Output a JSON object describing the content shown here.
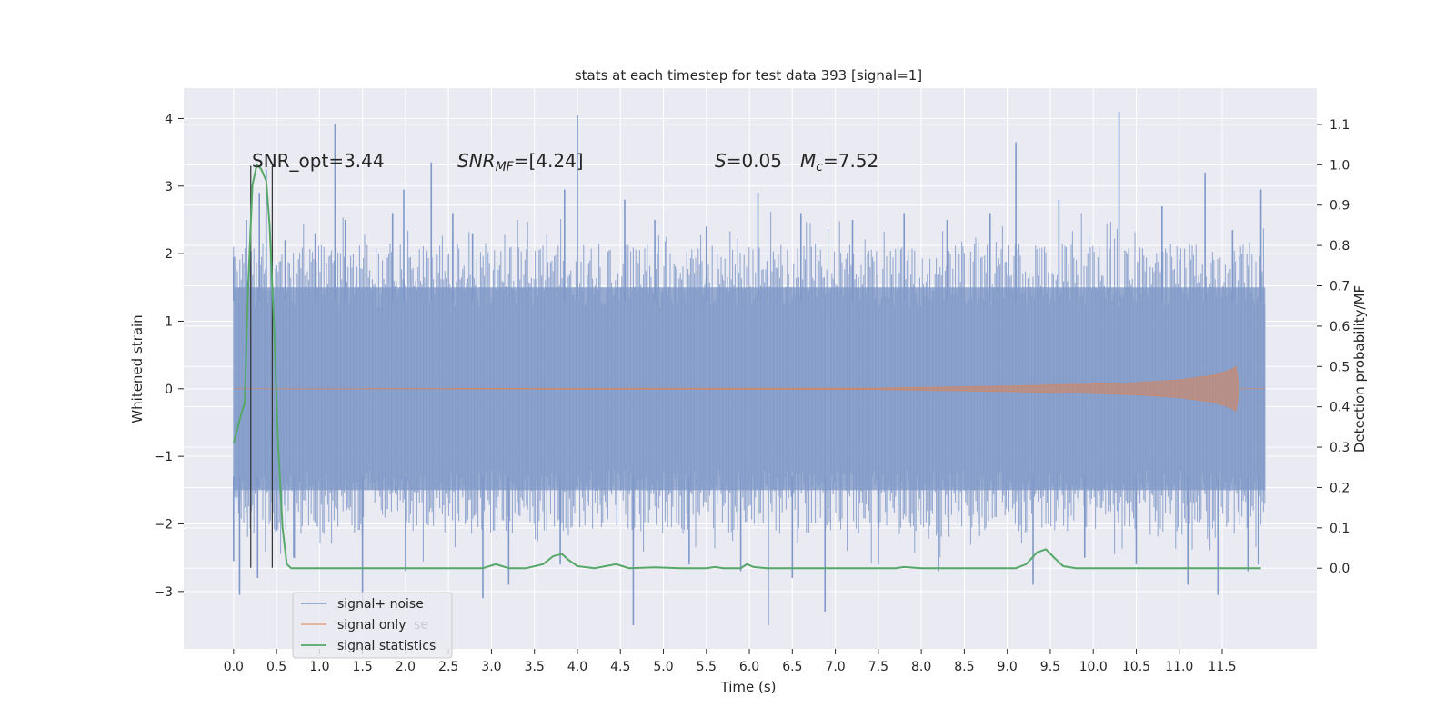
{
  "chart_data": {
    "type": "line",
    "title": "stats at each timestep for test data 393 [signal=1]",
    "xlabel": "Time (s)",
    "ylabel": "Whitened strain",
    "y2label": "Detection probability/MF",
    "xlim": [
      -0.58,
      12.6
    ],
    "ylim": [
      -3.85,
      4.45
    ],
    "y2lim": [
      -0.2,
      1.19
    ],
    "xticks": [
      0.0,
      0.5,
      1.0,
      1.5,
      2.0,
      2.5,
      3.0,
      3.5,
      4.0,
      4.5,
      5.0,
      5.5,
      6.0,
      6.5,
      7.0,
      7.5,
      8.0,
      8.5,
      9.0,
      9.5,
      10.0,
      10.5,
      11.0,
      11.5
    ],
    "xtick_labels": [
      "0.0",
      "0.5",
      "1.0",
      "1.5",
      "2.0",
      "2.5",
      "3.0",
      "3.5",
      "4.0",
      "4.5",
      "5.0",
      "5.5",
      "6.0",
      "6.5",
      "7.0",
      "7.5",
      "8.0",
      "8.5",
      "9.0",
      "9.5",
      "10.0",
      "10.5",
      "11.0",
      "11.5"
    ],
    "yticks": [
      4,
      3,
      2,
      1,
      0,
      -1,
      -2,
      -3
    ],
    "ytick_labels": [
      "4",
      "3",
      "2",
      "1",
      "0",
      "−1",
      "−2",
      "−3"
    ],
    "y2ticks": [
      1.1,
      1.0,
      0.9,
      0.8,
      0.7,
      0.6,
      0.5,
      0.4,
      0.3,
      0.2,
      0.1,
      0.0
    ],
    "y2tick_labels": [
      "1.1",
      "1.0",
      "0.9",
      "0.8",
      "0.7",
      "0.6",
      "0.5",
      "0.4",
      "0.3",
      "0.2",
      "0.1",
      "0.0"
    ],
    "grid": true,
    "annotations": [
      "SNR_opt=3.44",
      "SNR_MF=[4.24]",
      "S=0.05",
      "M_c=7.52"
    ],
    "vertical_lines_x": [
      0.2,
      0.45
    ],
    "vertical_lines_y": [
      -2.65,
      3.3
    ],
    "legend": {
      "placement": "lower-left",
      "entries": [
        "signal+ noise",
        "signal only",
        "signal statistics"
      ],
      "ghost_text": "se"
    },
    "series": [
      {
        "name": "signal+ noise",
        "color": "#7f98c8",
        "axis": "left",
        "kind": "noise",
        "x_range": [
          0.0,
          12.0
        ],
        "dense_band": [
          -1.5,
          1.5
        ],
        "peaks": [
          [
            0.0,
            1.95
          ],
          [
            0.15,
            2.5
          ],
          [
            0.3,
            2.9
          ],
          [
            0.38,
            3.25
          ],
          [
            0.6,
            2.2
          ],
          [
            0.95,
            2.3
          ],
          [
            1.18,
            3.92
          ],
          [
            1.3,
            2.5
          ],
          [
            1.85,
            2.6
          ],
          [
            1.98,
            2.95
          ],
          [
            2.3,
            3.35
          ],
          [
            2.55,
            2.6
          ],
          [
            2.78,
            2.3
          ],
          [
            3.3,
            2.5
          ],
          [
            3.85,
            2.95
          ],
          [
            4.0,
            4.05
          ],
          [
            4.55,
            2.8
          ],
          [
            4.9,
            2.5
          ],
          [
            5.5,
            2.4
          ],
          [
            6.1,
            2.9
          ],
          [
            6.6,
            2.6
          ],
          [
            7.2,
            2.5
          ],
          [
            7.8,
            2.6
          ],
          [
            8.3,
            2.5
          ],
          [
            8.8,
            2.6
          ],
          [
            9.1,
            3.65
          ],
          [
            9.6,
            2.8
          ],
          [
            10.3,
            4.1
          ],
          [
            10.8,
            2.7
          ],
          [
            11.3,
            3.2
          ],
          [
            11.62,
            2.35
          ],
          [
            11.95,
            2.95
          ]
        ],
        "troughs": [
          [
            0.0,
            -2.55
          ],
          [
            0.07,
            -3.05
          ],
          [
            0.28,
            -2.8
          ],
          [
            0.5,
            -2.1
          ],
          [
            0.7,
            -2.5
          ],
          [
            1.5,
            -3.2
          ],
          [
            2.0,
            -2.7
          ],
          [
            2.9,
            -3.1
          ],
          [
            3.2,
            -2.9
          ],
          [
            3.8,
            -2.6
          ],
          [
            4.65,
            -3.5
          ],
          [
            5.3,
            -2.6
          ],
          [
            5.9,
            -2.7
          ],
          [
            6.22,
            -3.5
          ],
          [
            6.5,
            -2.8
          ],
          [
            6.88,
            -3.3
          ],
          [
            7.5,
            -2.6
          ],
          [
            8.2,
            -2.7
          ],
          [
            9.3,
            -2.9
          ],
          [
            9.9,
            -2.5
          ],
          [
            10.5,
            -2.6
          ],
          [
            11.1,
            -2.9
          ],
          [
            11.45,
            -3.05
          ],
          [
            11.8,
            -2.7
          ],
          [
            11.92,
            -2.6
          ]
        ]
      },
      {
        "name": "signal only",
        "color": "#dd8452",
        "axis": "left",
        "kind": "chirp",
        "x": [
          0.0,
          7.5,
          8.0,
          9.0,
          10.0,
          10.5,
          11.0,
          11.4,
          11.6,
          11.66,
          11.7,
          12.0
        ],
        "envelope": [
          0.0,
          0.01,
          0.02,
          0.04,
          0.07,
          0.09,
          0.13,
          0.2,
          0.28,
          0.33,
          0.0,
          0.0
        ]
      },
      {
        "name": "signal statistics",
        "color": "#55a868",
        "axis": "right",
        "kind": "line",
        "x": [
          0.0,
          0.05,
          0.1,
          0.13,
          0.17,
          0.22,
          0.27,
          0.32,
          0.38,
          0.42,
          0.47,
          0.52,
          0.57,
          0.62,
          0.67,
          0.75,
          1.0,
          2.0,
          2.9,
          3.05,
          3.2,
          3.4,
          3.6,
          3.72,
          3.82,
          3.9,
          4.0,
          4.2,
          4.45,
          4.6,
          4.9,
          5.2,
          5.5,
          5.6,
          5.7,
          5.9,
          5.97,
          6.05,
          6.2,
          7.0,
          7.7,
          7.8,
          8.0,
          9.1,
          9.22,
          9.35,
          9.45,
          9.55,
          9.65,
          9.8,
          10.0,
          11.0,
          11.95
        ],
        "y": [
          0.31,
          0.35,
          0.39,
          0.41,
          0.7,
          0.95,
          1.0,
          0.99,
          0.96,
          0.85,
          0.6,
          0.3,
          0.1,
          0.01,
          0.0,
          0.0,
          0.0,
          0.0,
          0.0,
          0.01,
          0.0,
          0.0,
          0.01,
          0.03,
          0.035,
          0.02,
          0.005,
          0.0,
          0.01,
          0.0,
          0.002,
          0.0,
          0.0,
          0.003,
          0.0,
          0.0,
          0.01,
          0.003,
          0.0,
          0.0,
          0.0,
          0.003,
          0.0,
          0.0,
          0.01,
          0.04,
          0.047,
          0.025,
          0.005,
          0.0,
          0.0,
          0.0,
          0.0
        ]
      }
    ]
  }
}
